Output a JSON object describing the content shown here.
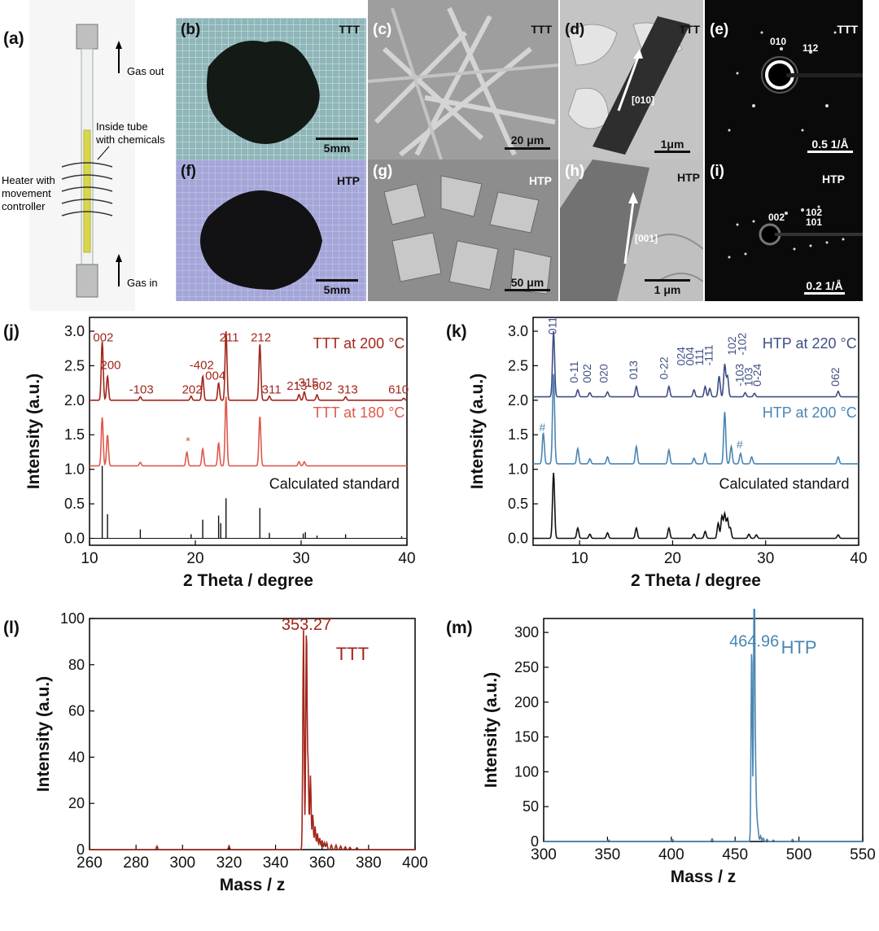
{
  "panels": {
    "a": {
      "letter": "(a)",
      "gas_out": "Gas out",
      "gas_in": "Gas in",
      "inside_tube": "Inside tube\nwith chemicals",
      "heater": "Heater with\nmovement\ncontroller"
    },
    "b": {
      "letter": "(b)",
      "tag": "TTT",
      "scale": "5mm"
    },
    "c": {
      "letter": "(c)",
      "tag": "TTT",
      "scale": "20 μm"
    },
    "d": {
      "letter": "(d)",
      "tag": "TTT",
      "scale": "1μm",
      "direction": "[010]"
    },
    "e": {
      "letter": "(e)",
      "tag": "TTT",
      "scale": "0.5 1/Å",
      "spots": [
        "010",
        "112"
      ]
    },
    "f": {
      "letter": "(f)",
      "tag": "HTP",
      "scale": "5mm"
    },
    "g": {
      "letter": "(g)",
      "tag": "HTP",
      "scale": "50 μm"
    },
    "h": {
      "letter": "(h)",
      "tag": "HTP",
      "scale": "1 μm",
      "direction": "[001]"
    },
    "i": {
      "letter": "(i)",
      "tag": "HTP",
      "scale": "0.2 1/Å",
      "spots": [
        "002",
        "102",
        "101"
      ]
    },
    "j": {
      "letter": "(j)"
    },
    "k": {
      "letter": "(k)"
    },
    "l": {
      "letter": "(l)"
    },
    "m": {
      "letter": "(m)"
    }
  },
  "colors": {
    "ttt_dark": "#a3261c",
    "ttt_light": "#e0584c",
    "htp_dark": "#3f4f86",
    "htp_light": "#4a86b3",
    "black": "#111111"
  },
  "chart_data": [
    {
      "panel": "j",
      "type": "line",
      "xlabel": "2 Theta / degree",
      "ylabel": "Intensity (a.u.)",
      "xlim": [
        10,
        40
      ],
      "ylim": [
        -0.1,
        3.2
      ],
      "xticks": [
        10,
        20,
        30,
        40
      ],
      "yticks": [
        0.0,
        0.5,
        1.0,
        1.5,
        2.0,
        2.5,
        3.0
      ],
      "series": [
        {
          "name": "TTT at 200 °C",
          "color": "#a3261c",
          "baseline": 2.0,
          "peaks": [
            [
              11.2,
              0.85
            ],
            [
              11.7,
              0.35
            ],
            [
              14.8,
              0.05
            ],
            [
              19.6,
              0.06
            ],
            [
              20.7,
              0.35
            ],
            [
              22.2,
              0.25
            ],
            [
              22.9,
              1.0
            ],
            [
              26.1,
              0.82
            ],
            [
              27.0,
              0.06
            ],
            [
              29.8,
              0.08
            ],
            [
              30.3,
              0.12
            ],
            [
              31.5,
              0.08
            ],
            [
              34.2,
              0.05
            ],
            [
              39.7,
              0.03
            ]
          ]
        },
        {
          "name": "TTT  at 180 °C",
          "color": "#e0584c",
          "baseline": 1.05,
          "peaks": [
            [
              11.2,
              0.7
            ],
            [
              11.7,
              0.45
            ],
            [
              14.8,
              0.05
            ],
            [
              19.2,
              0.2
            ],
            [
              20.7,
              0.25
            ],
            [
              22.2,
              0.33
            ],
            [
              22.9,
              1.0
            ],
            [
              26.1,
              0.72
            ],
            [
              29.8,
              0.06
            ],
            [
              30.3,
              0.06
            ]
          ]
        },
        {
          "name": "Calculated standard",
          "color": "#111111",
          "type": "stick",
          "peaks": [
            [
              11.2,
              1.05
            ],
            [
              11.7,
              0.35
            ],
            [
              14.8,
              0.13
            ],
            [
              19.6,
              0.06
            ],
            [
              20.7,
              0.27
            ],
            [
              22.2,
              0.33
            ],
            [
              22.4,
              0.22
            ],
            [
              22.9,
              0.58
            ],
            [
              26.1,
              0.44
            ],
            [
              27.0,
              0.08
            ],
            [
              30.2,
              0.07
            ],
            [
              30.4,
              0.09
            ],
            [
              31.5,
              0.04
            ],
            [
              34.2,
              0.06
            ],
            [
              39.5,
              0.03
            ]
          ]
        }
      ],
      "annotations": [
        {
          "text": "002",
          "x": 11.3,
          "y": 2.85
        },
        {
          "text": "200",
          "x": 12.0,
          "y": 2.45
        },
        {
          "text": "-103",
          "x": 14.9,
          "y": 2.1
        },
        {
          "text": "202",
          "x": 19.7,
          "y": 2.1
        },
        {
          "text": "-402",
          "x": 20.6,
          "y": 2.45
        },
        {
          "text": "004",
          "x": 21.9,
          "y": 2.3
        },
        {
          "text": "211",
          "x": 23.2,
          "y": 2.85
        },
        {
          "text": "212",
          "x": 26.2,
          "y": 2.85
        },
        {
          "text": "311",
          "x": 27.2,
          "y": 2.1
        },
        {
          "text": "213",
          "x": 29.6,
          "y": 2.15
        },
        {
          "text": "-315",
          "x": 30.5,
          "y": 2.2
        },
        {
          "text": "-602",
          "x": 31.8,
          "y": 2.15
        },
        {
          "text": "313",
          "x": 34.4,
          "y": 2.1
        },
        {
          "text": "610",
          "x": 39.2,
          "y": 2.1
        },
        {
          "text": "*",
          "x": 19.3,
          "y": 1.35
        }
      ]
    },
    {
      "panel": "k",
      "type": "line",
      "xlabel": "2 Theta / degree",
      "ylabel": "Intensity (a.u.)",
      "xlim": [
        5,
        40
      ],
      "ylim": [
        -0.1,
        3.2
      ],
      "xticks": [
        10,
        20,
        30,
        40
      ],
      "yticks": [
        0.0,
        0.5,
        1.0,
        1.5,
        2.0,
        2.5,
        3.0
      ],
      "series": [
        {
          "name": "HTP at 220 °C",
          "color": "#3f4f86",
          "baseline": 2.05,
          "peaks": [
            [
              7.2,
              0.95
            ],
            [
              9.8,
              0.1
            ],
            [
              11.1,
              0.06
            ],
            [
              13.0,
              0.07
            ],
            [
              16.1,
              0.15
            ],
            [
              19.6,
              0.15
            ],
            [
              22.3,
              0.1
            ],
            [
              23.5,
              0.15
            ],
            [
              24.0,
              0.12
            ],
            [
              25.0,
              0.3
            ],
            [
              25.6,
              0.47
            ],
            [
              25.9,
              0.3
            ],
            [
              27.8,
              0.06
            ],
            [
              28.8,
              0.05
            ],
            [
              37.8,
              0.08
            ]
          ]
        },
        {
          "name": "HTP  at 200 °C",
          "color": "#4a86b3",
          "baseline": 1.08,
          "peaks": [
            [
              6.1,
              0.45
            ],
            [
              7.2,
              1.3
            ],
            [
              9.8,
              0.22
            ],
            [
              11.1,
              0.07
            ],
            [
              13.0,
              0.1
            ],
            [
              16.1,
              0.25
            ],
            [
              19.6,
              0.2
            ],
            [
              22.3,
              0.08
            ],
            [
              23.5,
              0.15
            ],
            [
              25.6,
              0.75
            ],
            [
              26.3,
              0.25
            ],
            [
              27.3,
              0.15
            ],
            [
              28.5,
              0.1
            ],
            [
              37.8,
              0.1
            ]
          ]
        },
        {
          "name": "Calculated standard",
          "color": "#111111",
          "baseline": 0.0,
          "peaks": [
            [
              7.2,
              0.95
            ],
            [
              9.8,
              0.15
            ],
            [
              11.1,
              0.06
            ],
            [
              13.0,
              0.08
            ],
            [
              16.1,
              0.15
            ],
            [
              19.6,
              0.15
            ],
            [
              22.3,
              0.06
            ],
            [
              23.5,
              0.1
            ],
            [
              24.9,
              0.22
            ],
            [
              25.3,
              0.32
            ],
            [
              25.6,
              0.35
            ],
            [
              25.9,
              0.28
            ],
            [
              26.2,
              0.15
            ],
            [
              28.2,
              0.06
            ],
            [
              29.0,
              0.05
            ],
            [
              37.8,
              0.05
            ]
          ]
        }
      ],
      "annotations": [
        {
          "text": "011",
          "x": 7.5,
          "y": 2.95,
          "rot": -90
        },
        {
          "text": "0-11",
          "x": 9.8,
          "y": 2.25,
          "rot": -90
        },
        {
          "text": "002",
          "x": 11.2,
          "y": 2.25,
          "rot": -90
        },
        {
          "text": "020",
          "x": 13.0,
          "y": 2.25,
          "rot": -90
        },
        {
          "text": "013",
          "x": 16.2,
          "y": 2.3,
          "rot": -90
        },
        {
          "text": "0-22",
          "x": 19.5,
          "y": 2.3,
          "rot": -90
        },
        {
          "text": "024",
          "x": 21.3,
          "y": 2.5,
          "rot": -90
        },
        {
          "text": "004",
          "x": 22.3,
          "y": 2.5,
          "rot": -90
        },
        {
          "text": "111",
          "x": 23.3,
          "y": 2.5,
          "rot": -90
        },
        {
          "text": "-111",
          "x": 24.3,
          "y": 2.5,
          "rot": -90
        },
        {
          "text": "102",
          "x": 26.8,
          "y": 2.65,
          "rot": -90
        },
        {
          "text": "-102",
          "x": 27.9,
          "y": 2.65,
          "rot": -90
        },
        {
          "text": "-103",
          "x": 27.6,
          "y": 2.2,
          "rot": -90
        },
        {
          "text": "103",
          "x": 28.6,
          "y": 2.2,
          "rot": -90
        },
        {
          "text": "0-24",
          "x": 29.5,
          "y": 2.2,
          "rot": -90
        },
        {
          "text": "062",
          "x": 37.9,
          "y": 2.2,
          "rot": -90
        },
        {
          "text": "#",
          "x": 6.0,
          "y": 1.55
        },
        {
          "text": "#",
          "x": 27.2,
          "y": 1.3
        }
      ]
    },
    {
      "panel": "l",
      "type": "line",
      "title": "TTT",
      "xlabel": "Mass / z",
      "ylabel": "Intensity (a.u.)",
      "xlim": [
        260,
        400
      ],
      "ylim": [
        0,
        100
      ],
      "xticks": [
        260,
        280,
        300,
        320,
        340,
        360,
        380,
        400
      ],
      "yticks": [
        0,
        20,
        40,
        60,
        80,
        100
      ],
      "series": [
        {
          "name": "TTT",
          "color": "#a3261c",
          "peaks": [
            [
              289,
              1.5
            ],
            [
              320,
              1.5
            ],
            [
              352,
              95
            ],
            [
              353.27,
              95
            ],
            [
              354,
              35
            ],
            [
              355,
              32
            ],
            [
              356,
              15
            ],
            [
              357,
              10
            ],
            [
              358,
              7
            ],
            [
              359,
              5
            ],
            [
              360,
              4
            ],
            [
              361,
              3
            ],
            [
              362,
              3
            ],
            [
              364,
              2
            ],
            [
              366,
              2
            ],
            [
              368,
              1.5
            ],
            [
              370,
              1.2
            ],
            [
              372,
              1
            ],
            [
              375,
              0.8
            ]
          ]
        }
      ],
      "annotations": [
        {
          "text": "353.27",
          "x": 353.27,
          "y": 95
        }
      ]
    },
    {
      "panel": "m",
      "type": "line",
      "title": "HTP",
      "xlabel": "Mass / z",
      "ylabel": "Intensity (a.u.)",
      "xlim": [
        300,
        550
      ],
      "ylim": [
        0,
        320
      ],
      "xticks": [
        300,
        350,
        400,
        450,
        500,
        550
      ],
      "yticks": [
        0,
        50,
        100,
        150,
        200,
        250,
        300
      ],
      "series": [
        {
          "name": "HTP",
          "color": "#4a86b3",
          "peaks": [
            [
              351,
              2
            ],
            [
              401,
              3
            ],
            [
              432,
              4
            ],
            [
              463,
              280
            ],
            [
              464.96,
              280
            ],
            [
              465,
              100
            ],
            [
              466,
              80
            ],
            [
              467,
              30
            ],
            [
              468,
              15
            ],
            [
              470,
              8
            ],
            [
              472,
              5
            ],
            [
              475,
              3
            ],
            [
              480,
              2
            ],
            [
              495,
              3
            ]
          ]
        }
      ],
      "annotations": [
        {
          "text": "464.96",
          "x": 464.96,
          "y": 280
        }
      ]
    }
  ]
}
